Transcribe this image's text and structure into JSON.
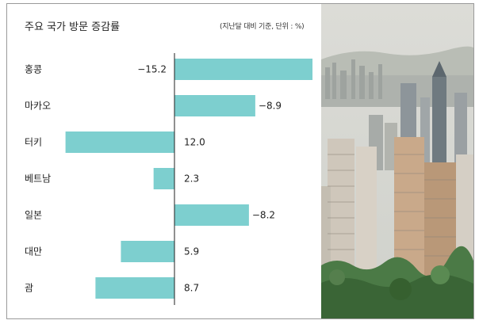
{
  "title": "주요 국가 방문 증감률",
  "unit_note": "(지난달 대비 기준, 단위 : %)",
  "chart_data": {
    "type": "bar",
    "orientation": "horizontal",
    "title": "주요 국가 방문 증감률",
    "unit": "%",
    "categories": [
      "홍콩",
      "마카오",
      "터키",
      "베트남",
      "일본",
      "대만",
      "괌"
    ],
    "values": [
      -15.2,
      -8.9,
      12.0,
      2.3,
      -8.2,
      5.9,
      8.7
    ],
    "value_labels": [
      "−15.2",
      "−8.9",
      "12.0",
      "2.3",
      "−8.2",
      "5.9",
      "8.7"
    ],
    "bar_color": "#7dcfcf",
    "note": "Decreases (negative) extend to the right of the axis; increases extend to the left."
  },
  "photo": {
    "icon": "hong-kong-skyline-photo",
    "sky": "#d9d9d4",
    "foliage": "#3f6a3b"
  }
}
